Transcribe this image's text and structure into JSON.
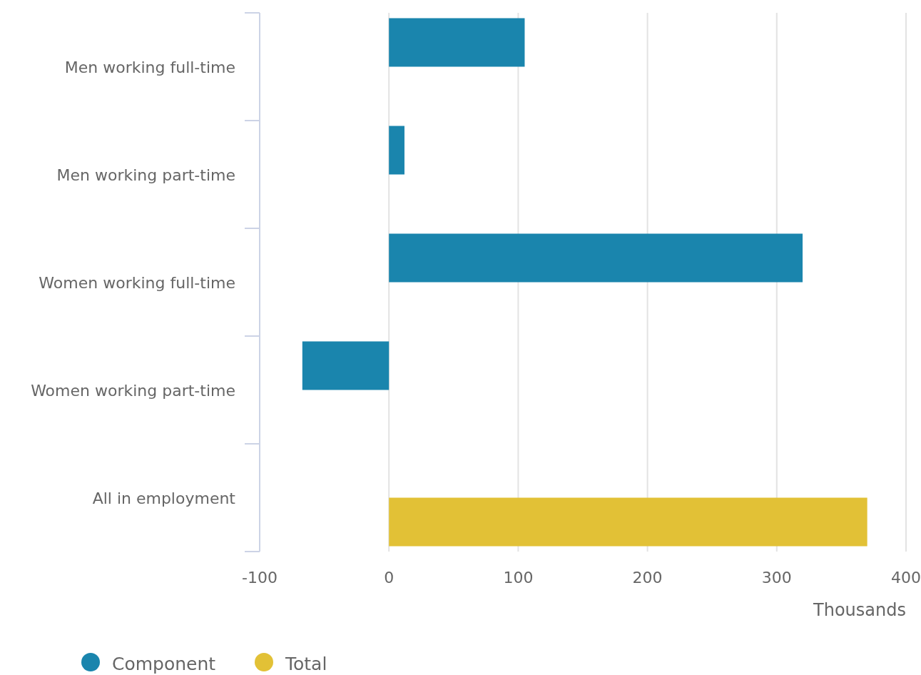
{
  "chart_data": {
    "type": "bar",
    "orientation": "horizontal",
    "categories": [
      "Men working full-time",
      "Men working part-time",
      "Women working full-time",
      "Women working part-time",
      "All in employment"
    ],
    "series": [
      {
        "name": "Component",
        "color": "#1a85ad",
        "values": [
          105,
          12,
          320,
          -67,
          null
        ]
      },
      {
        "name": "Total",
        "color": "#e2c136",
        "values": [
          null,
          null,
          null,
          null,
          370
        ]
      }
    ],
    "xlim": [
      -100,
      400
    ],
    "xticks": [
      -100,
      0,
      100,
      200,
      300,
      400
    ],
    "xlabel": "Thousands",
    "grid": "x",
    "legend": "bottom left"
  }
}
